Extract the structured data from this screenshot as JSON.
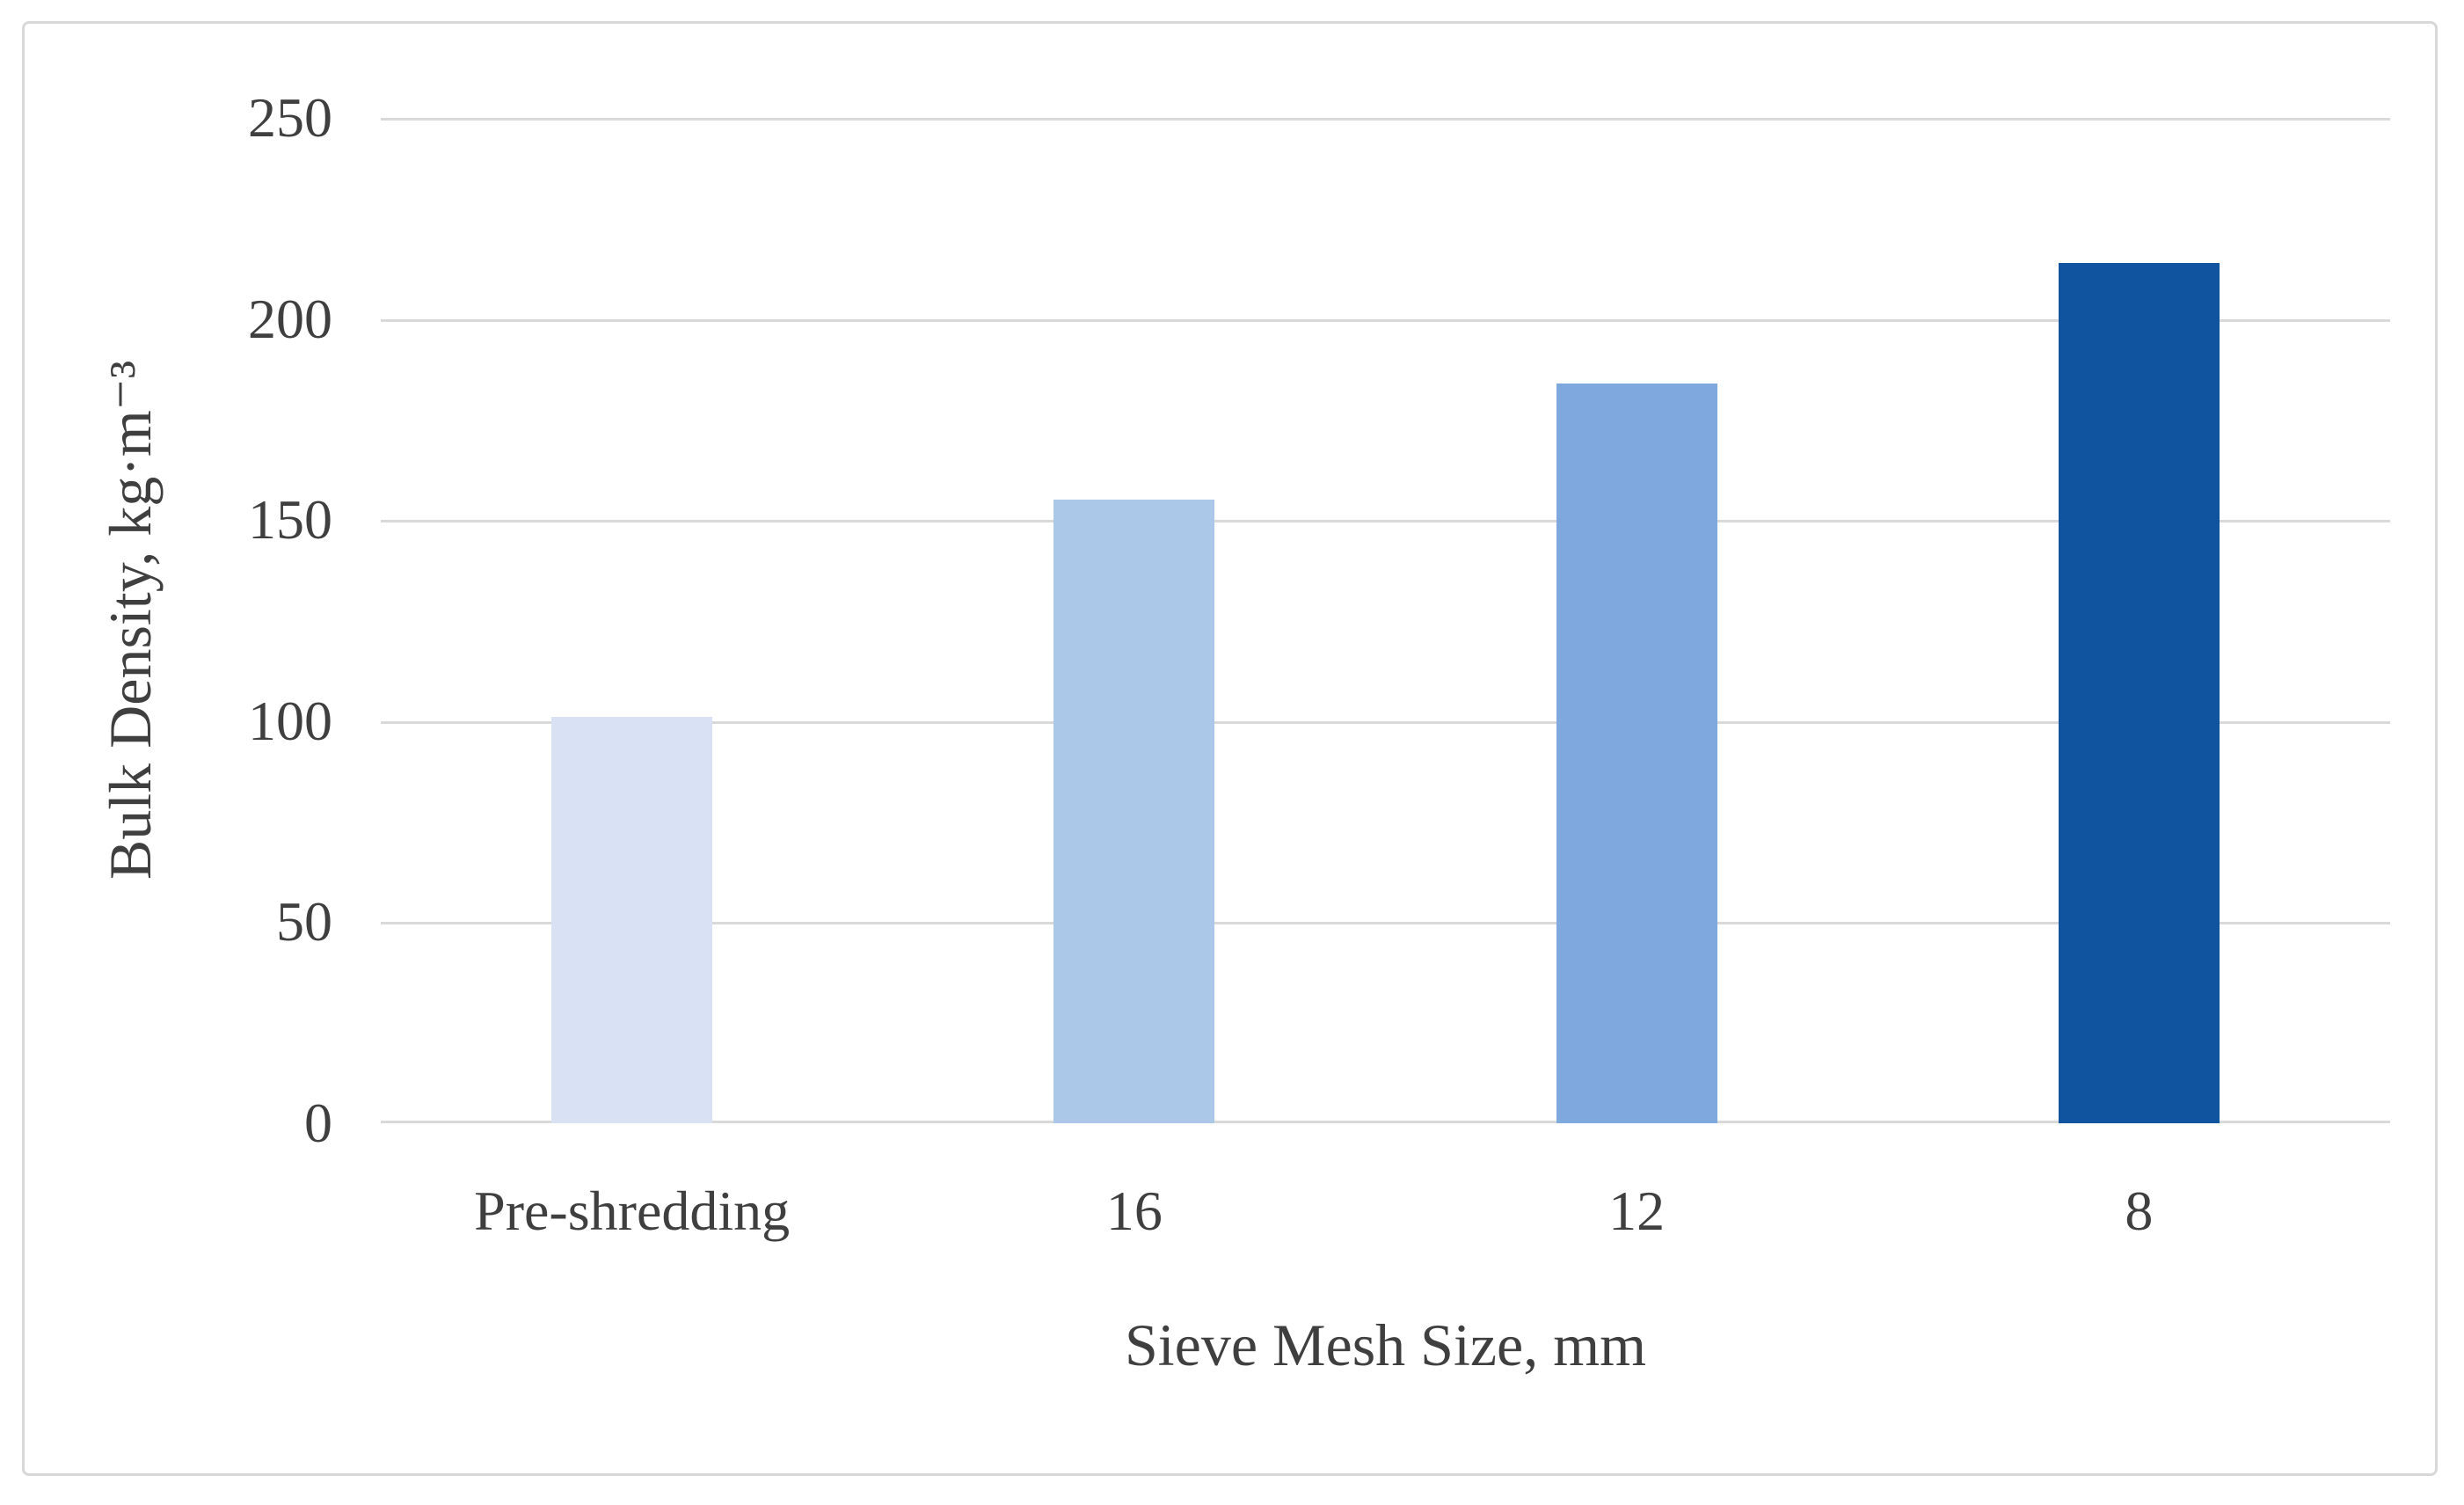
{
  "chart_data": {
    "type": "bar",
    "categories": [
      "Pre-shredding",
      "16",
      "12",
      "8"
    ],
    "values": [
      101,
      155,
      184,
      214
    ],
    "bar_colors": [
      "#d8e2f4",
      "#abc8e8",
      "#7fa8de",
      "#10549f"
    ],
    "title": "",
    "xlabel": "Sieve Mesh Size, mm",
    "ylabel": "Bulk Density, kg·m⁻³",
    "ylim": [
      0,
      250
    ],
    "ytick_step": 50,
    "ytick_labels": [
      "0",
      "50",
      "100",
      "150",
      "200",
      "250"
    ],
    "grid": "horizontal",
    "legend": "none",
    "gridline_color": "#d9d9d9",
    "frame_border_color": "#d8d8d8",
    "tick_label_color": "#3f3f3f",
    "background_color": "#ffffff"
  }
}
